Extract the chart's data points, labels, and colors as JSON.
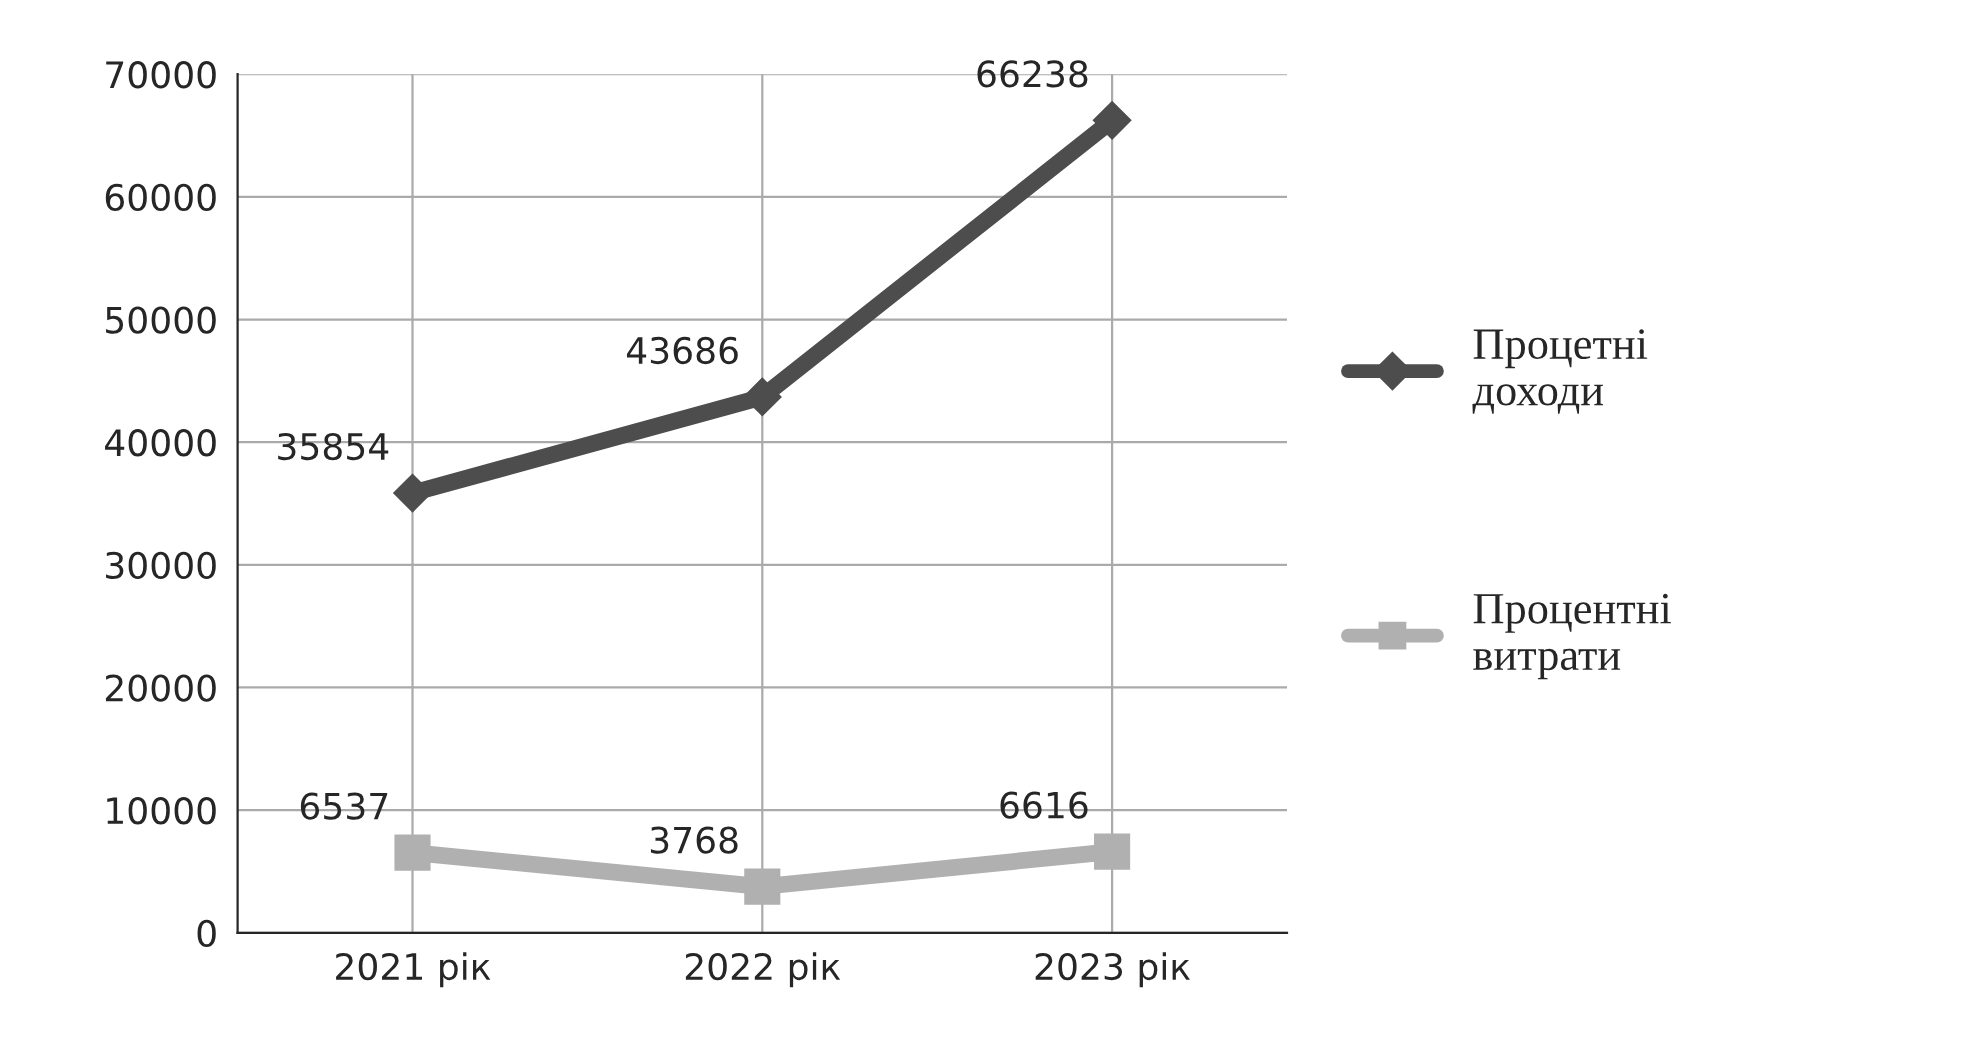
{
  "chart_data": {
    "type": "line",
    "categories": [
      "2021 рік",
      "2022 рік",
      "2023 рік"
    ],
    "series": [
      {
        "name": "Процетні доходи",
        "color": "#4d4d4d",
        "values": [
          35854,
          43686,
          66238
        ],
        "marker": "diamond"
      },
      {
        "name": "Процентні витрати",
        "color": "#b0b0b0",
        "values": [
          6537,
          3768,
          6616
        ],
        "marker": "square"
      }
    ],
    "ylim": [
      0,
      70000
    ],
    "yticks": [
      0,
      10000,
      20000,
      30000,
      40000,
      50000,
      60000,
      70000
    ],
    "grid": true,
    "legend": "right",
    "data_labels": true,
    "line_style": "solid"
  }
}
